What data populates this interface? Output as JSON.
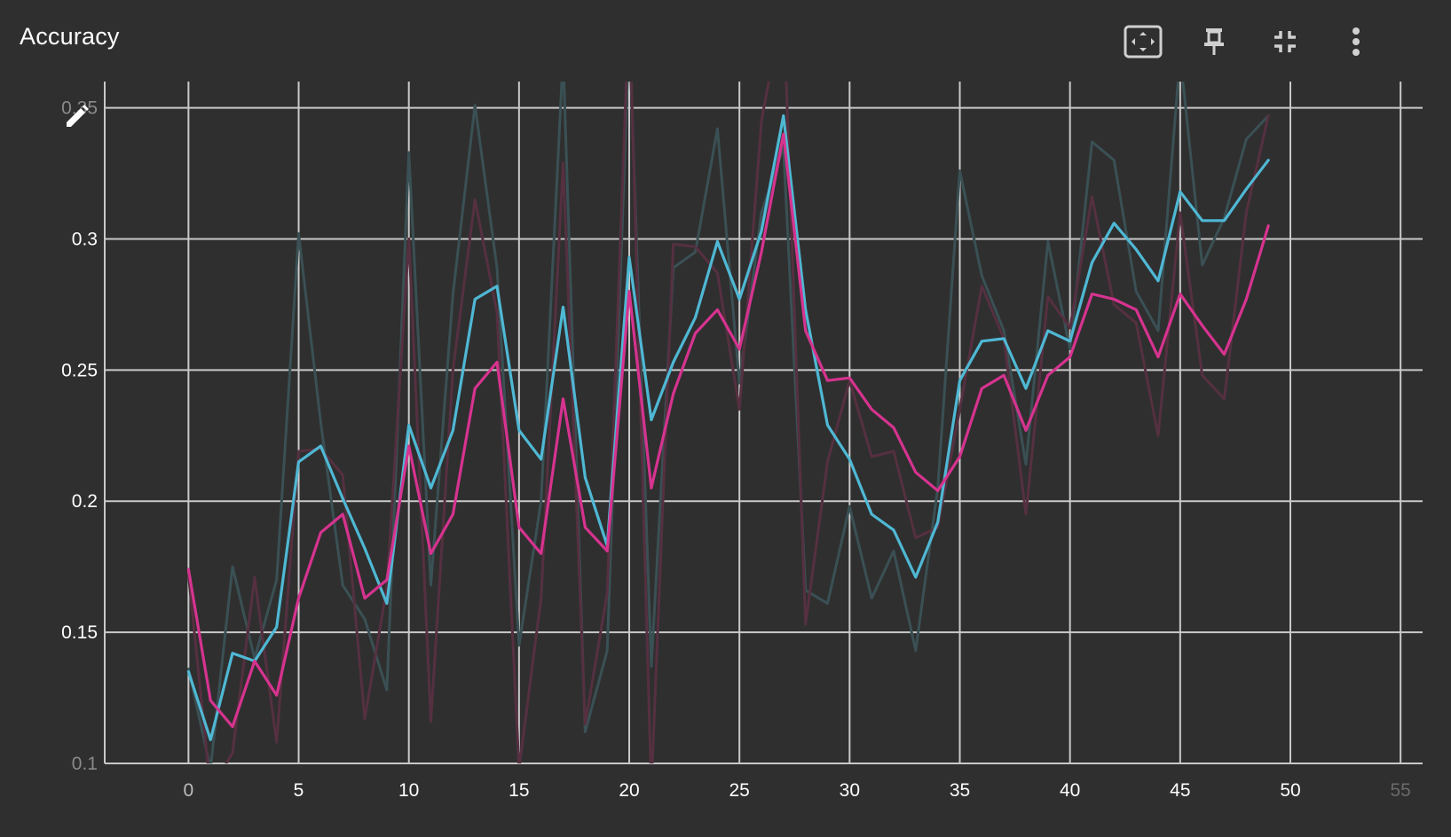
{
  "card": {
    "title": "Accuracy"
  },
  "toolbar": {
    "buttons": [
      {
        "name": "fit-domain-button",
        "icon": "fit-screen-icon"
      },
      {
        "name": "pin-button",
        "icon": "pin-icon"
      },
      {
        "name": "collapse-button",
        "icon": "fullscreen-exit-icon"
      },
      {
        "name": "more-options-button",
        "icon": "more-vert-icon"
      }
    ]
  },
  "colors": {
    "background": "#2f2f2f",
    "grid": "#c9c9c9",
    "tick_text": "#ffffff",
    "series_cyan": "#4fb8d4",
    "series_magenta": "#d6338f",
    "raw_cyan": "#3a5054",
    "raw_magenta": "#553040"
  },
  "chart_data": {
    "type": "line",
    "title": "Accuracy",
    "xlabel": "",
    "ylabel": "",
    "xlim": [
      -3.8,
      56
    ],
    "ylim": [
      0.1,
      0.36
    ],
    "grid": true,
    "x_ticks": [
      0,
      5,
      10,
      15,
      20,
      25,
      30,
      35,
      40,
      45,
      50,
      55
    ],
    "y_ticks": [
      {
        "value": 0.1,
        "label": "0.1"
      },
      {
        "value": 0.15,
        "label": "0.15"
      },
      {
        "value": 0.2,
        "label": "0.2"
      },
      {
        "value": 0.25,
        "label": "0.25"
      },
      {
        "value": 0.3,
        "label": "0.3"
      },
      {
        "value": 0.35,
        "label": "0.35"
      }
    ],
    "x": [
      0,
      1,
      2,
      3,
      4,
      5,
      6,
      7,
      8,
      9,
      10,
      11,
      12,
      13,
      14,
      15,
      16,
      17,
      18,
      19,
      20,
      21,
      22,
      23,
      24,
      25,
      26,
      27,
      28,
      29,
      30,
      31,
      32,
      33,
      34,
      35,
      36,
      37,
      38,
      39,
      40,
      41,
      42,
      43,
      44,
      45,
      46,
      47,
      48,
      49
    ],
    "series": [
      {
        "id": "raw-cyan",
        "kind": "raw",
        "color": "#3a5054",
        "values": [
          0.136,
          0.098,
          0.175,
          0.14,
          0.17,
          0.302,
          0.23,
          0.168,
          0.155,
          0.128,
          0.333,
          0.168,
          0.279,
          0.351,
          0.289,
          0.145,
          0.2,
          0.37,
          0.112,
          0.143,
          0.38,
          0.137,
          0.289,
          0.295,
          0.342,
          0.245,
          0.31,
          0.335,
          0.166,
          0.161,
          0.198,
          0.163,
          0.181,
          0.143,
          0.205,
          0.326,
          0.286,
          0.265,
          0.214,
          0.299,
          0.258,
          0.337,
          0.33,
          0.28,
          0.265,
          0.37,
          0.29,
          0.308,
          0.338,
          0.347
        ]
      },
      {
        "id": "raw-magenta",
        "kind": "raw",
        "color": "#553040",
        "values": [
          0.172,
          0.09,
          0.104,
          0.171,
          0.108,
          0.219,
          0.22,
          0.21,
          0.117,
          0.167,
          0.3,
          0.116,
          0.25,
          0.315,
          0.272,
          0.098,
          0.163,
          0.329,
          0.115,
          0.165,
          0.39,
          0.09,
          0.298,
          0.297,
          0.287,
          0.235,
          0.345,
          0.39,
          0.153,
          0.215,
          0.246,
          0.217,
          0.219,
          0.186,
          0.19,
          0.235,
          0.282,
          0.262,
          0.195,
          0.278,
          0.266,
          0.316,
          0.275,
          0.268,
          0.225,
          0.31,
          0.248,
          0.239,
          0.31,
          0.347
        ]
      },
      {
        "id": "smoothed-cyan",
        "kind": "smoothed",
        "color": "#4fb8d4",
        "values": [
          0.135,
          0.109,
          0.142,
          0.139,
          0.152,
          0.215,
          0.221,
          0.201,
          0.182,
          0.161,
          0.229,
          0.205,
          0.227,
          0.277,
          0.282,
          0.227,
          0.216,
          0.274,
          0.209,
          0.183,
          0.293,
          0.231,
          0.253,
          0.27,
          0.299,
          0.277,
          0.303,
          0.347,
          0.273,
          0.229,
          0.216,
          0.195,
          0.189,
          0.171,
          0.192,
          0.246,
          0.261,
          0.262,
          0.243,
          0.265,
          0.261,
          0.291,
          0.306,
          0.296,
          0.284,
          0.318,
          0.307,
          0.307,
          0.319,
          0.33
        ]
      },
      {
        "id": "smoothed-magenta",
        "kind": "smoothed",
        "color": "#d6338f",
        "values": [
          0.174,
          0.124,
          0.114,
          0.139,
          0.126,
          0.163,
          0.188,
          0.195,
          0.163,
          0.17,
          0.221,
          0.18,
          0.195,
          0.243,
          0.253,
          0.19,
          0.18,
          0.239,
          0.19,
          0.181,
          0.28,
          0.205,
          0.241,
          0.264,
          0.273,
          0.258,
          0.295,
          0.34,
          0.265,
          0.246,
          0.247,
          0.235,
          0.228,
          0.211,
          0.204,
          0.217,
          0.243,
          0.248,
          0.227,
          0.248,
          0.255,
          0.279,
          0.277,
          0.273,
          0.255,
          0.279,
          0.267,
          0.256,
          0.277,
          0.305
        ]
      }
    ]
  }
}
